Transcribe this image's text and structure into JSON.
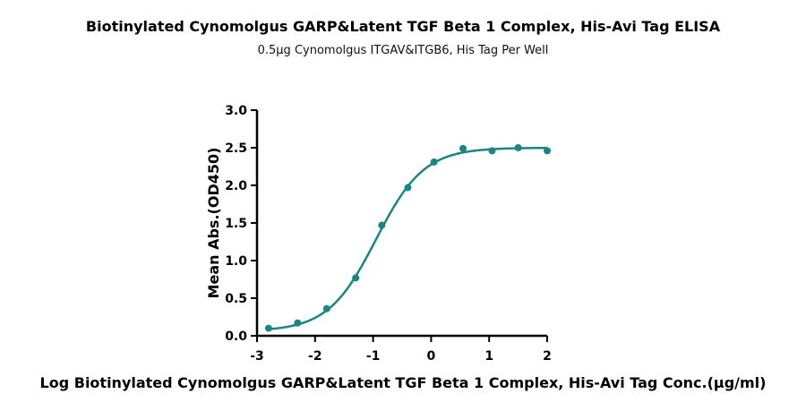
{
  "chart_data": {
    "type": "scatter",
    "title": "Biotinylated Cynomolgus GARP&Latent TGF Beta 1 Complex, His-Avi Tag ELISA",
    "subtitle": "0.5μg Cynomolgus ITGAV&ITGB6, His Tag Per Well",
    "xlabel": "Log Biotinylated Cynomolgus GARP&Latent TGF Beta 1 Complex, His-Avi Tag Conc.(μg/ml)",
    "ylabel": "Mean Abs.(OD450)",
    "xlim": [
      -3,
      2
    ],
    "ylim": [
      0,
      3.0
    ],
    "x_ticks": [
      "-3",
      "-2",
      "-1",
      "0",
      "1",
      "2"
    ],
    "y_ticks": [
      "0.0",
      "0.5",
      "1.0",
      "1.5",
      "2.0",
      "2.5",
      "3.0"
    ],
    "color": "#1a8585",
    "grid": false,
    "series": [
      {
        "x": [
          -2.8,
          -2.3,
          -1.8,
          -1.3,
          -0.85,
          -0.4,
          0.05,
          0.55,
          1.05,
          1.5,
          2.0
        ],
        "y": [
          0.1,
          0.17,
          0.36,
          0.77,
          1.47,
          1.97,
          2.31,
          2.49,
          2.46,
          2.5,
          2.46
        ]
      }
    ],
    "fit_curve": {
      "model": "four-parameter logistic",
      "bottom": 0.06,
      "top": 2.5,
      "log_ec50": -0.95,
      "hill_slope": 1.05
    }
  }
}
